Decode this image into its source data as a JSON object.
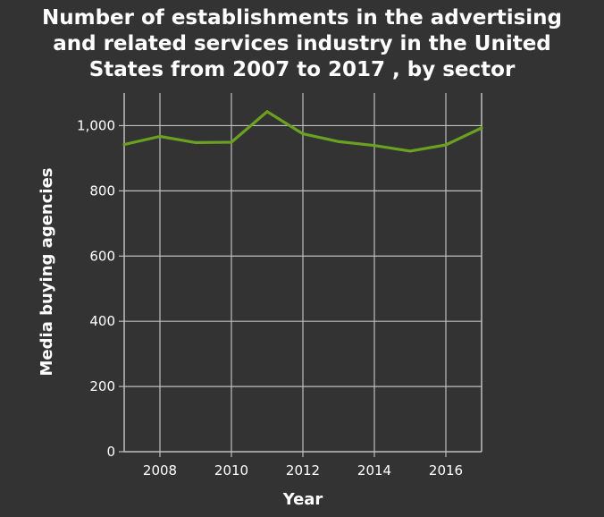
{
  "chart_data": {
    "type": "line",
    "title_lines": [
      "Number of establishments in the advertising",
      "and related services industry in the United",
      "States from 2007 to 2017 , by sector"
    ],
    "xlabel": "Year",
    "ylabel": "Media buying agencies",
    "xlim": [
      2007,
      2017
    ],
    "ylim": [
      0,
      1100
    ],
    "x_ticks": [
      2008,
      2010,
      2012,
      2014,
      2016
    ],
    "y_ticks": [
      0,
      200,
      400,
      600,
      800,
      1000
    ],
    "y_tick_labels": [
      "0",
      "200",
      "400",
      "600",
      "800",
      "1,000"
    ],
    "grid": true,
    "series": [
      {
        "x": [
          2007,
          2008,
          2009,
          2010,
          2011,
          2012,
          2013,
          2014,
          2015,
          2016,
          2017
        ],
        "values": [
          942,
          967,
          948,
          949,
          1043,
          975,
          951,
          939,
          922,
          941,
          993
        ],
        "color": "#6aa121"
      }
    ]
  },
  "colors": {
    "background": "#333333",
    "grid": "#bfbfbf",
    "text": "#ffffff"
  }
}
